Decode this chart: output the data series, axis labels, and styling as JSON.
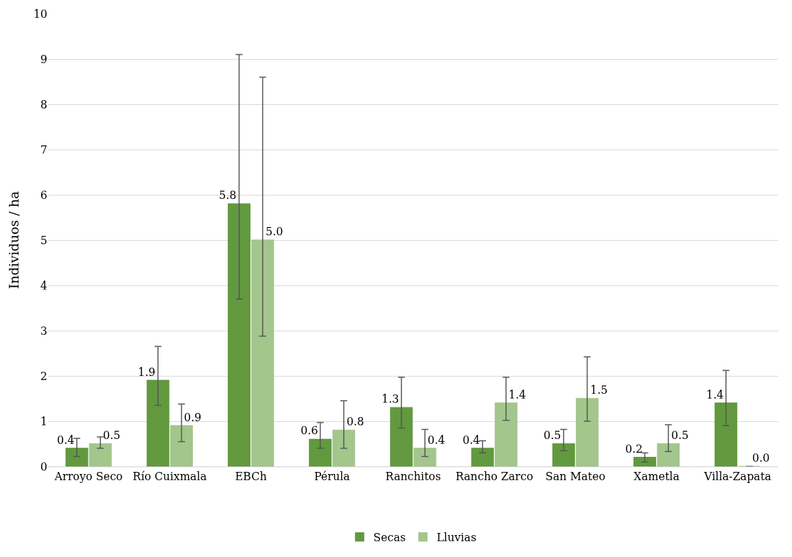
{
  "chart_data": {
    "type": "bar",
    "ylabel": "Individuos / ha",
    "categories": [
      "Arroyo Seco",
      "Río Cuixmala",
      "EBCh",
      "Pérula",
      "Ranchitos",
      "Rancho Zarco",
      "San Mateo",
      "Xametla",
      "Villa-Zapata"
    ],
    "series": [
      {
        "name": "Secas",
        "color": "#62993e",
        "values": [
          0.4,
          1.9,
          5.8,
          0.6,
          1.3,
          0.4,
          0.5,
          0.2,
          1.4
        ],
        "value_labels": [
          "0.4",
          "1.9",
          "5.8",
          "0.6",
          "1.3",
          "0.4",
          "0.5",
          "0.2",
          "1.4"
        ],
        "errors": [
          [
            0.22,
            0.62
          ],
          [
            1.35,
            2.65
          ],
          [
            3.7,
            9.1
          ],
          [
            0.4,
            0.97
          ],
          [
            0.85,
            1.97
          ],
          [
            0.3,
            0.57
          ],
          [
            0.35,
            0.82
          ],
          [
            0.1,
            0.3
          ],
          [
            0.9,
            2.12
          ]
        ]
      },
      {
        "name": "Lluvias",
        "color": "#a3c68c",
        "values": [
          0.5,
          0.9,
          5.0,
          0.8,
          0.4,
          1.4,
          1.5,
          0.5,
          0.0
        ],
        "value_labels": [
          "0.5",
          "0.9",
          "5.0",
          "0.8",
          "0.4",
          "1.4",
          "1.5",
          "0.5",
          "0.0"
        ],
        "errors": [
          [
            0.4,
            0.65
          ],
          [
            0.55,
            1.38
          ],
          [
            2.88,
            8.6
          ],
          [
            0.4,
            1.45
          ],
          [
            0.22,
            0.82
          ],
          [
            1.02,
            1.97
          ],
          [
            1.0,
            2.42
          ],
          [
            0.33,
            0.92
          ],
          null
        ]
      }
    ],
    "ylim": [
      0,
      10
    ],
    "yticks": [
      0,
      1,
      2,
      3,
      4,
      5,
      6,
      7,
      8,
      9,
      10
    ],
    "grid": "y",
    "legend": "bottom"
  }
}
